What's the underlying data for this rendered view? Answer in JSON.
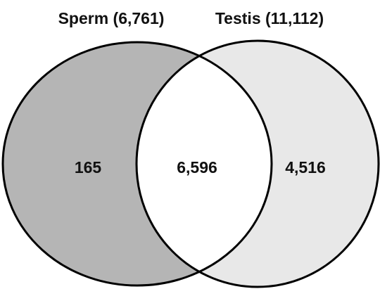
{
  "sets": [
    {
      "label": "Sperm (6,761)"
    },
    {
      "label": "Testis (11,112)"
    }
  ],
  "regions": {
    "only_first": "165",
    "intersection": "6,596",
    "only_second": "4,516"
  }
}
